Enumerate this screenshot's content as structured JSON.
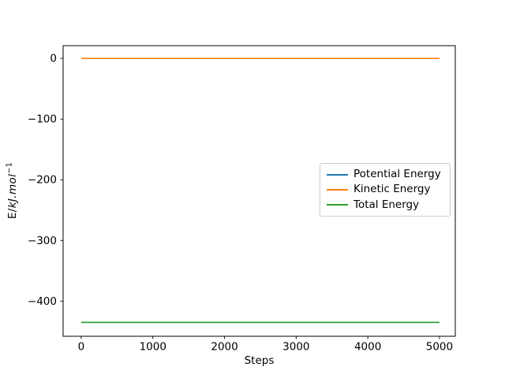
{
  "chart_data": {
    "type": "line",
    "title": "",
    "xlabel": "Steps",
    "ylabel": "E/kJ.mol⁻¹",
    "ylabel_parts": {
      "prefix": "E/",
      "italic": "kJ.mol",
      "superscript": "−1"
    },
    "x": [
      0,
      5000
    ],
    "series": [
      {
        "name": "Potential Energy",
        "color": "#1f77b4",
        "values": [
          -435,
          -435
        ]
      },
      {
        "name": "Kinetic Energy",
        "color": "#ff7f0e",
        "values": [
          0,
          0
        ]
      },
      {
        "name": "Total Energy",
        "color": "#2ca02c",
        "values": [
          -435,
          -435
        ]
      }
    ],
    "xlim": [
      -253,
      5221
    ],
    "ylim": [
      -458,
      21
    ],
    "xticks": [
      0,
      1000,
      2000,
      3000,
      4000,
      5000
    ],
    "xtick_labels": [
      "0",
      "1000",
      "2000",
      "3000",
      "4000",
      "5000"
    ],
    "yticks": [
      0,
      -100,
      -200,
      -300,
      -400
    ],
    "ytick_labels": [
      "0",
      "−100",
      "−200",
      "−300",
      "−400"
    ],
    "grid": false,
    "legend": {
      "position": "center right",
      "border_color": "#cccccc",
      "entries": [
        "Potential Energy",
        "Kinetic Energy",
        "Total Energy"
      ]
    },
    "background": "#ffffff",
    "axis_color": "#000000"
  }
}
